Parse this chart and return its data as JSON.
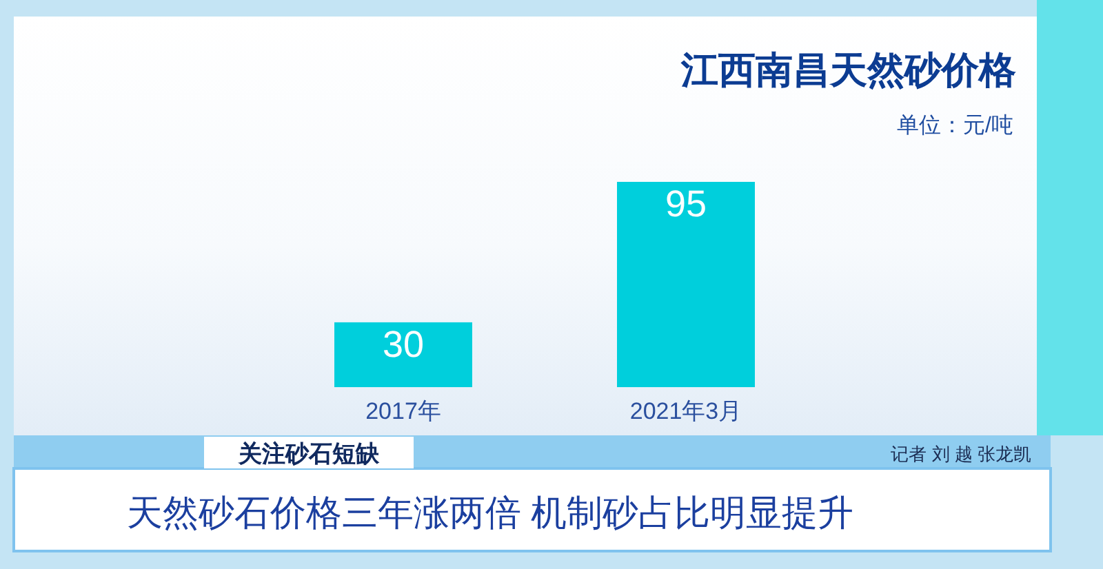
{
  "chart_data": {
    "type": "bar",
    "title": "江西南昌天然砂价格",
    "subtitle": "单位：元/吨",
    "categories": [
      "2017年",
      "2021年3月"
    ],
    "values": [
      30,
      95
    ],
    "color": "#00cfdc",
    "data_labels": true,
    "annotations": [
      "关注砂石短缺",
      "记者 刘 越 张龙凯",
      "天然砂石价格三年涨两倍 机制砂占比明显提升"
    ]
  }
}
